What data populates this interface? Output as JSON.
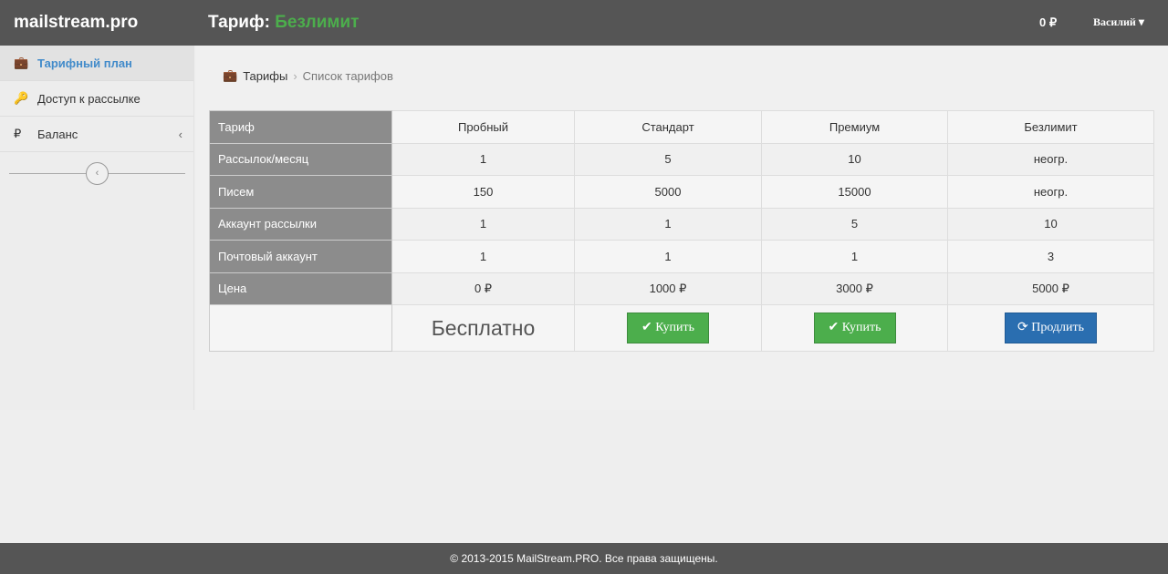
{
  "header": {
    "brand": "mailstream.pro",
    "title_prefix": "Тариф:",
    "title_value": "Безлимит",
    "balance": "0 ₽",
    "user": "Василий"
  },
  "sidebar": {
    "items": [
      {
        "label": "Тарифный план",
        "icon": "briefcase-icon",
        "active": true
      },
      {
        "label": "Доступ к рассылке",
        "icon": "key-icon"
      },
      {
        "label": "Баланс",
        "icon": "ruble-icon"
      }
    ]
  },
  "breadcrumb": {
    "root": "Тарифы",
    "current": "Список тарифов"
  },
  "table": {
    "columns": [
      "Тариф",
      "Пробный",
      "Стандарт",
      "Премиум",
      "Безлимит"
    ],
    "rows": [
      [
        "Рассылок/месяц",
        "1",
        "5",
        "10",
        "неогр."
      ],
      [
        "Писем",
        "150",
        "5000",
        "15000",
        "неогр."
      ],
      [
        "Аккаунт рассылки",
        "1",
        "1",
        "5",
        "10"
      ],
      [
        "Почтовый аккаунт",
        "1",
        "1",
        "1",
        "3"
      ],
      [
        "Цена",
        "0 ₽",
        "1000 ₽",
        "3000 ₽",
        "5000 ₽"
      ]
    ],
    "actions": {
      "free": "Бесплатно",
      "buy": "Купить",
      "renew": "Продлить"
    }
  },
  "colors": {
    "header": "#555555",
    "accent_green": "#4cae4c",
    "accent_blue": "#2a6eb0",
    "link": "#428bca"
  },
  "footer": "© 2013-2015 MailStream.PRO. Все права защищены."
}
